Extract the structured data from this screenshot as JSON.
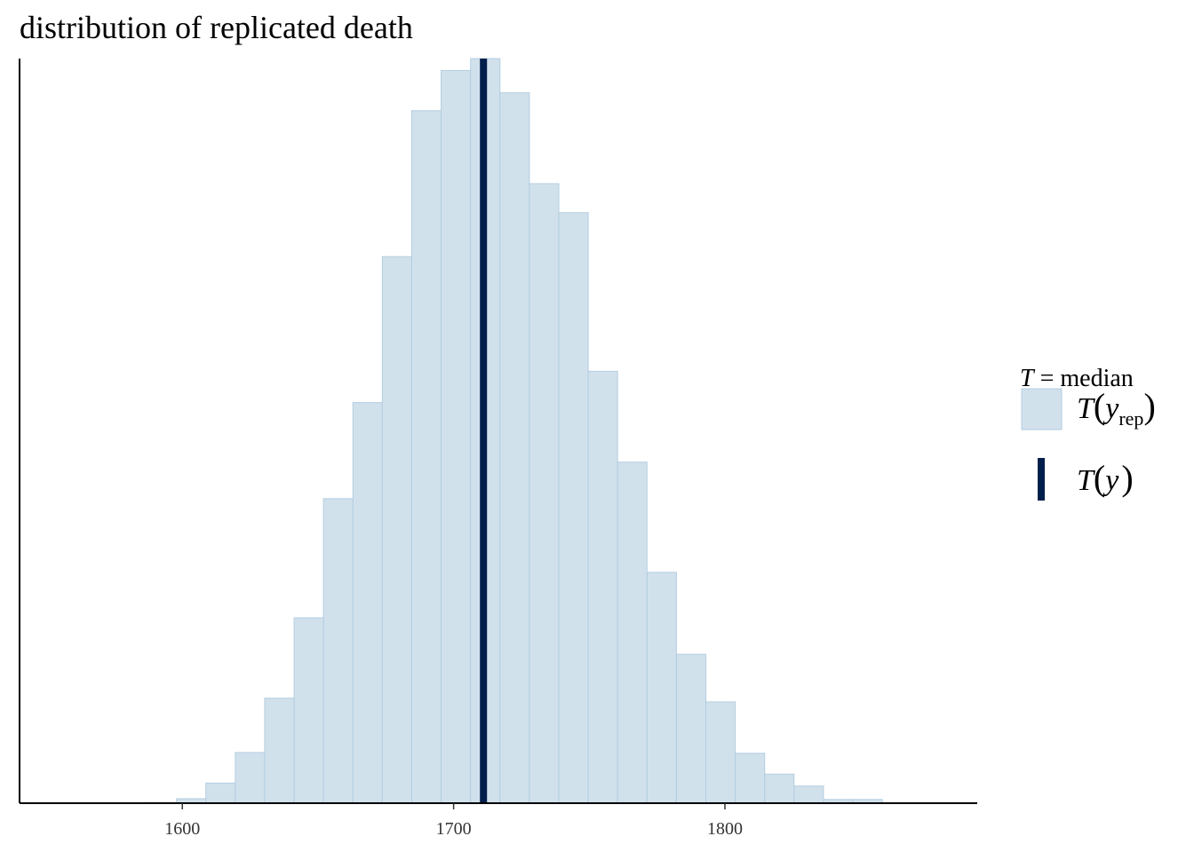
{
  "chart_data": {
    "type": "bar",
    "title": "distribution of replicated death",
    "xlabel": "",
    "ylabel": "",
    "xlim": [
      1540,
      1893
    ],
    "xticks": [
      1600,
      1700,
      1800
    ],
    "xtick_labels": [
      "1600",
      "1700",
      "1800"
    ],
    "y_axis_ticks": "none",
    "grid": false,
    "bin_edges": [
      1587,
      1597.84,
      1608.68,
      1619.52,
      1630.36,
      1641.2,
      1652.04,
      1662.88,
      1673.72,
      1684.56,
      1695.4,
      1706.24,
      1717.08,
      1727.92,
      1738.76,
      1749.6,
      1760.44,
      1771.28,
      1782.12,
      1792.96,
      1803.8,
      1814.64,
      1825.48,
      1836.32,
      1847.16,
      1858
    ],
    "counts": [
      0.0009,
      0.006,
      0.027,
      0.068,
      0.141,
      0.249,
      0.409,
      0.538,
      0.734,
      0.93,
      0.984,
      1.0,
      0.954,
      0.832,
      0.793,
      0.58,
      0.458,
      0.31,
      0.2,
      0.136,
      0.067,
      0.039,
      0.023,
      0.005,
      0.005
    ],
    "observed": {
      "label": "T(y)",
      "value": 1711
    },
    "colors": {
      "bars_fill": "#d1e1ec",
      "bars_stroke": "#b3cde0",
      "observed_line": "#011f4b"
    },
    "legend": {
      "position": "right",
      "title_symbol": "T",
      "title_rest": " = median",
      "items": [
        {
          "kind": "bar",
          "label_main": "T",
          "label_var": "y",
          "label_sub": "rep"
        },
        {
          "kind": "line",
          "label_main": "T",
          "label_var": "y",
          "label_sub": ""
        }
      ]
    }
  }
}
